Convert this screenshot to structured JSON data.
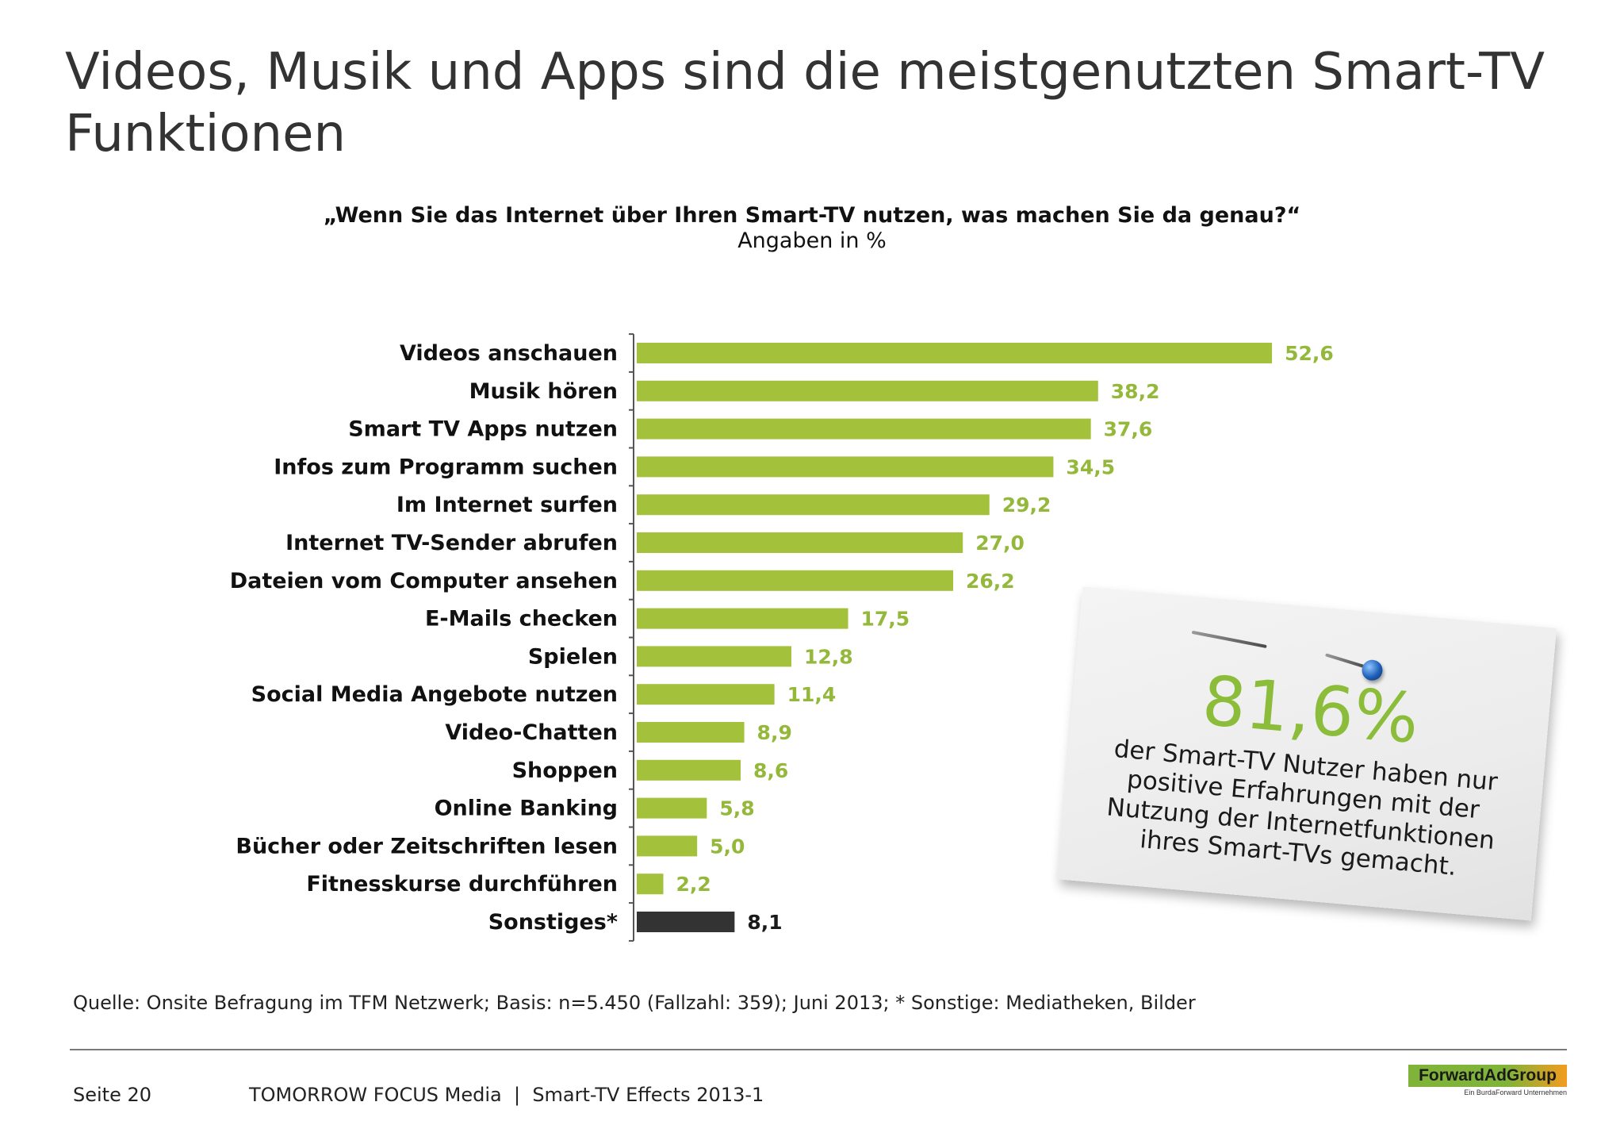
{
  "title": "Videos, Musik und Apps sind die meistgenutzten Smart-TV Funktionen",
  "subtitle_question": "„Wenn Sie das Internet über Ihren Smart-TV nutzen, was machen Sie da genau?“",
  "subtitle_unit": "Angaben in %",
  "colors": {
    "bar": "#a3c13b",
    "bar_other": "#333333",
    "value_label": "#94b83a",
    "value_label_other": "#1a1a1a",
    "note_accent": "#8cbd3a"
  },
  "chart_data": {
    "type": "bar",
    "orientation": "horizontal",
    "categories": [
      "Videos anschauen",
      "Musik hören",
      "Smart TV Apps nutzen",
      "Infos zum Programm suchen",
      "Im Internet surfen",
      "Internet TV-Sender abrufen",
      "Dateien vom Computer ansehen",
      "E-Mails checken",
      "Spielen",
      "Social Media Angebote nutzen",
      "Video-Chatten",
      "Shoppen",
      "Online Banking",
      "Bücher oder Zeitschriften lesen",
      "Fitnesskurse durchführen",
      "Sonstiges*"
    ],
    "values": [
      52.6,
      38.2,
      37.6,
      34.5,
      29.2,
      27.0,
      26.2,
      17.5,
      12.8,
      11.4,
      8.9,
      8.6,
      5.8,
      5.0,
      2.2,
      8.1
    ],
    "value_labels": [
      "52,6",
      "38,2",
      "37,6",
      "34,5",
      "29,2",
      "27,0",
      "26,2",
      "17,5",
      "12,8",
      "11,4",
      "8,9",
      "8,6",
      "5,8",
      "5,0",
      "2,2",
      "8,1"
    ],
    "highlighted_category": "Sonstiges*",
    "xlim": [
      0,
      55
    ],
    "grid": false,
    "xlabel": "",
    "ylabel": ""
  },
  "note": {
    "big": "81,6%",
    "text": "der Smart-TV Nutzer haben nur positive Erfahrungen mit der Nutzung der Internetfunktionen ihres Smart-TVs gemacht."
  },
  "source": "Quelle: Onsite Befragung im TFM Netzwerk; Basis: n=5.450 (Fallzahl: 359); Juni 2013; * Sonstige: Mediatheken, Bilder",
  "footer": {
    "page": "Seite 20",
    "text": "TOMORROW FOCUS Media  |  Smart-TV Effects 2013-1",
    "logo": "ForwardAdGroup",
    "logo_sub": "Ein BurdaForward Unternehmen"
  }
}
